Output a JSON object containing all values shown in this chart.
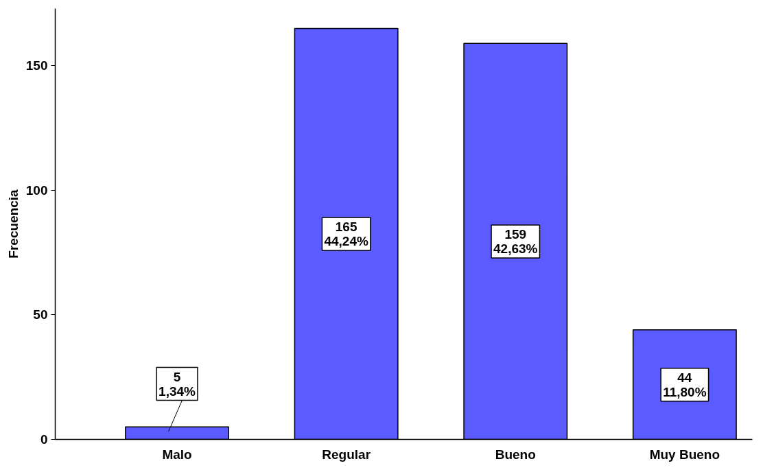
{
  "chart_data": {
    "type": "bar",
    "ylabel": "Frecuencia",
    "categories": [
      "Malo",
      "Regular",
      "Bueno",
      "Muy Bueno"
    ],
    "values": [
      5,
      165,
      159,
      44
    ],
    "value_labels": [
      "5\n1,34%",
      "165\n44,24%",
      "159\n42,63%",
      "44\n11,80%"
    ],
    "color": "#5b5bff",
    "ylim": [
      0,
      173
    ],
    "yticks": [
      0,
      50,
      100,
      150
    ],
    "grid": false
  }
}
